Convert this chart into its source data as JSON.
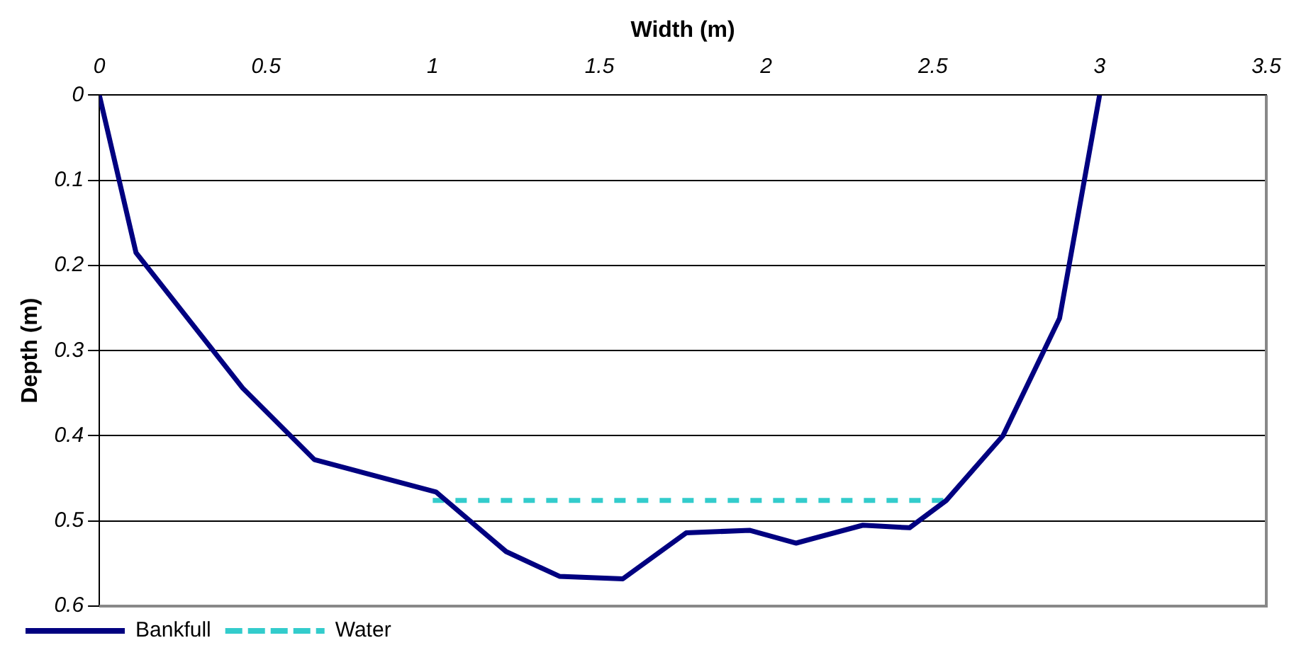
{
  "chart_data": {
    "type": "line",
    "xlabel": "Width (m)",
    "ylabel": "Depth (m)",
    "xlim": [
      0,
      3.5
    ],
    "xticks": [
      0,
      0.5,
      1,
      1.5,
      2,
      2.5,
      3,
      3.5
    ],
    "ylim": [
      0.6,
      0
    ],
    "yticks": [
      0,
      0.1,
      0.2,
      0.3,
      0.4,
      0.5,
      0.6
    ],
    "grid": "y",
    "legend": "bottom left",
    "marker": "none",
    "series": [
      {
        "name": "Bankfull",
        "color": "#000080",
        "line_style": "solid",
        "x": [
          0,
          0.11,
          0.43,
          0.645,
          1.01,
          1.22,
          1.38,
          1.57,
          1.76,
          1.95,
          2.09,
          2.29,
          2.43,
          2.54,
          2.71,
          2.88,
          3
        ],
        "values": [
          0,
          0.185,
          0.344,
          0.428,
          0.466,
          0.536,
          0.565,
          0.568,
          0.514,
          0.511,
          0.526,
          0.505,
          0.508,
          0.476,
          0.4,
          0.262,
          0
        ]
      },
      {
        "name": "Water",
        "color": "#33cccc",
        "line_style": "dashed",
        "x": [
          1,
          2.54
        ],
        "values": [
          0.476,
          0.476
        ]
      }
    ]
  }
}
